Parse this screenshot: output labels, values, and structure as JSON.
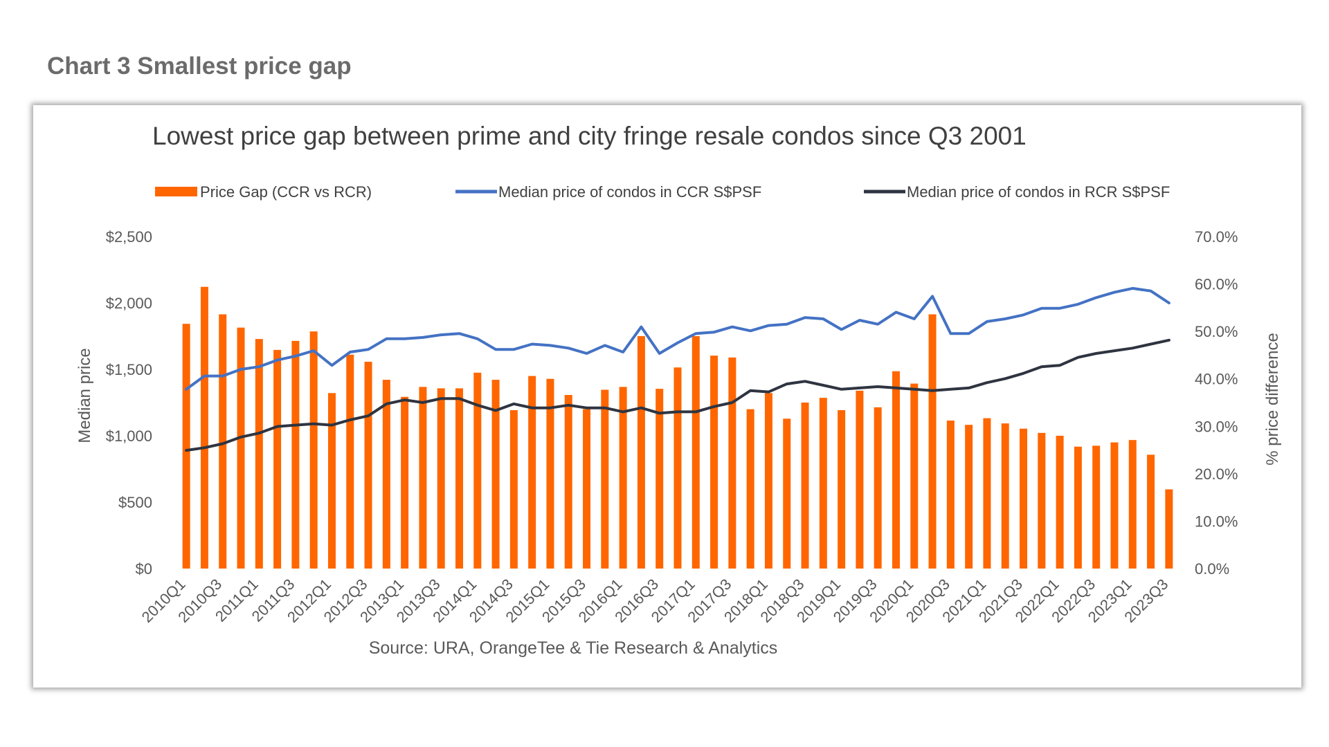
{
  "page": {
    "heading": "Chart 3 Smallest price gap"
  },
  "colors": {
    "bar": "#ff6600",
    "ccr": "#4472c4",
    "rcr": "#2e3440",
    "text": "#595959",
    "heading": "#6b6b6b"
  },
  "chart_data": {
    "type": "bar",
    "combo": "bar + line, dual axis",
    "title": "Lowest price gap between prime and city fringe resale condos since Q3 2001",
    "source": "Source: URA, OrangeTee & Tie Research & Analytics",
    "ylabel": "Median price",
    "y2label": "% price difference",
    "ylim": [
      0,
      2500
    ],
    "y2lim": [
      0,
      0.7
    ],
    "yticks": [
      "$2,500",
      "$2,000",
      "$1,500",
      "$1,000",
      "$500",
      "$0"
    ],
    "y2ticks": [
      "70.0%",
      "60.0%",
      "50.0%",
      "40.0%",
      "30.0%",
      "20.0%",
      "10.0%",
      "0.0%"
    ],
    "legend_position": "top",
    "grid": false,
    "categories": [
      "2010Q1",
      "2010Q2",
      "2010Q3",
      "2010Q4",
      "2011Q1",
      "2011Q2",
      "2011Q3",
      "2011Q4",
      "2012Q1",
      "2012Q2",
      "2012Q3",
      "2012Q4",
      "2013Q1",
      "2013Q2",
      "2013Q3",
      "2013Q4",
      "2014Q1",
      "2014Q2",
      "2014Q3",
      "2014Q4",
      "2015Q1",
      "2015Q2",
      "2015Q3",
      "2015Q4",
      "2016Q1",
      "2016Q2",
      "2016Q3",
      "2016Q4",
      "2017Q1",
      "2017Q2",
      "2017Q3",
      "2017Q4",
      "2018Q1",
      "2018Q2",
      "2018Q3",
      "2018Q4",
      "2019Q1",
      "2019Q2",
      "2019Q3",
      "2019Q4",
      "2020Q1",
      "2020Q2",
      "2020Q3",
      "2020Q4",
      "2021Q1",
      "2021Q2",
      "2021Q3",
      "2021Q4",
      "2022Q1",
      "2022Q2",
      "2022Q3",
      "2022Q4",
      "2023Q1",
      "2023Q2",
      "2023Q3"
    ],
    "series": [
      {
        "name": "Price Gap (CCR vs RCR)",
        "type": "bar",
        "axis": "right",
        "values": [
          0.516,
          0.594,
          0.536,
          0.508,
          0.484,
          0.461,
          0.48,
          0.5,
          0.37,
          0.451,
          0.436,
          0.398,
          0.362,
          0.383,
          0.38,
          0.38,
          0.413,
          0.398,
          0.334,
          0.406,
          0.4,
          0.366,
          0.336,
          0.377,
          0.383,
          0.49,
          0.379,
          0.424,
          0.49,
          0.449,
          0.445,
          0.336,
          0.37,
          0.316,
          0.35,
          0.36,
          0.334,
          0.375,
          0.34,
          0.416,
          0.39,
          0.536,
          0.312,
          0.303,
          0.317,
          0.306,
          0.295,
          0.286,
          0.28,
          0.257,
          0.259,
          0.266,
          0.271,
          0.24,
          0.167
        ]
      },
      {
        "name": "Median price of condos in CCR S$PSF",
        "type": "line",
        "axis": "left",
        "values": [
          1350,
          1450,
          1450,
          1500,
          1520,
          1570,
          1600,
          1640,
          1530,
          1630,
          1650,
          1730,
          1730,
          1740,
          1760,
          1770,
          1730,
          1650,
          1650,
          1690,
          1680,
          1660,
          1620,
          1680,
          1630,
          1820,
          1620,
          1700,
          1770,
          1780,
          1820,
          1790,
          1830,
          1840,
          1890,
          1880,
          1800,
          1870,
          1840,
          1930,
          1880,
          2050,
          1770,
          1770,
          1860,
          1880,
          1910,
          1960,
          1960,
          1990,
          2040,
          2080,
          2110,
          2090,
          2000
        ]
      },
      {
        "name": "Median price of condos in RCR S$PSF",
        "type": "line",
        "axis": "left",
        "values": [
          890,
          910,
          940,
          990,
          1020,
          1070,
          1080,
          1090,
          1080,
          1120,
          1150,
          1240,
          1270,
          1250,
          1280,
          1280,
          1230,
          1190,
          1240,
          1210,
          1210,
          1230,
          1210,
          1210,
          1180,
          1210,
          1170,
          1180,
          1180,
          1220,
          1250,
          1340,
          1330,
          1390,
          1410,
          1380,
          1350,
          1360,
          1370,
          1360,
          1350,
          1340,
          1350,
          1360,
          1400,
          1430,
          1470,
          1520,
          1530,
          1590,
          1620,
          1640,
          1660,
          1690,
          1720
        ]
      }
    ]
  }
}
